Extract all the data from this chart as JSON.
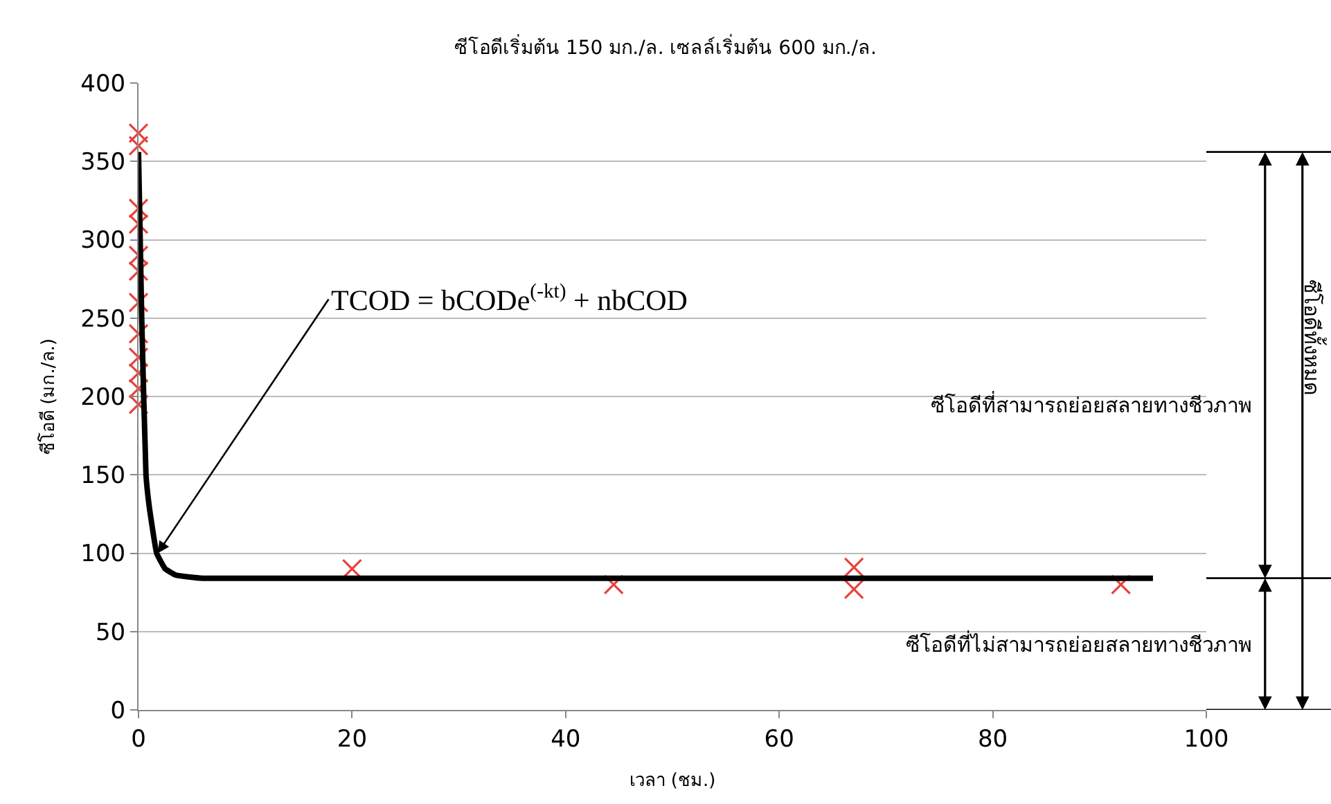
{
  "chart_data": {
    "type": "scatter",
    "title": "ซีโอดีเริ่มต้น 150 มก./ล. เซลล์เริ่มต้น 600 มก./ล.",
    "xlabel": "เวลา (ชม.)",
    "ylabel": "ซีโอดี (มก./ล.)",
    "series": [
      {
        "color": "#e8413c",
        "marker": "cross",
        "x": [
          0,
          0,
          0,
          0,
          0,
          0,
          0,
          0,
          0,
          0,
          0,
          0,
          20,
          44.5,
          67,
          67,
          92
        ],
        "values": [
          368,
          360,
          320,
          310,
          290,
          280,
          260,
          240,
          225,
          215,
          205,
          195,
          90,
          80,
          91,
          77,
          80
        ]
      },
      {
        "type": "line",
        "color": "#000000",
        "marker": "none",
        "line_style": "solid",
        "x": [
          0,
          0.3,
          0.7,
          1,
          1.7,
          2.5,
          3.5,
          6,
          95
        ],
        "values": [
          356,
          250,
          150,
          130,
          100,
          90,
          86,
          84,
          84
        ]
      }
    ],
    "xlim": [
      0,
      100
    ],
    "xticks": [
      0,
      20,
      40,
      60,
      80,
      100
    ],
    "ylim": [
      0,
      400
    ],
    "yticks": [
      0,
      50,
      100,
      150,
      200,
      250,
      300,
      350,
      400
    ],
    "grid": "y",
    "annotations": [
      {
        "text": "TCOD = bCODe$^{(-kt)}$ + nbCOD",
        "x": 1.8,
        "y": 100
      },
      "ซีโอดีที่สามารถย่อยสลายทางชีวภาพ",
      "ซีโอดีที่ไม่สามารถย่อยสลายทางชีวภาพ",
      "ซีโอดีทั้งหมด"
    ]
  }
}
